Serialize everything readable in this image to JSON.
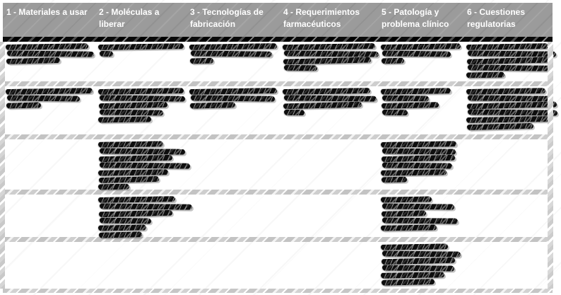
{
  "colors": {
    "header_bg": "#9b9b9b",
    "header_text": "#ffffff",
    "header_underline": "#0a0a0a",
    "row_separator": "#c8c8c8",
    "redaction": "#0e0e0e",
    "background": "#ffffff"
  },
  "table": {
    "columns": [
      {
        "label": "1 - Materiales a usar"
      },
      {
        "label": "2 - Moléculas a liberar"
      },
      {
        "label": "3 - Tecnologías de fabricación"
      },
      {
        "label": "4 - Requerimientos farmacéuticos"
      },
      {
        "label": "5 - Patología y problema clínico"
      },
      {
        "label": "6 - Cuestiones regulatorias"
      }
    ],
    "rows": [
      {
        "cells": {
          "redacted_line_widths_pct": [
            [
              95,
              100,
              62
            ],
            [
              100,
              16
            ],
            [
              100,
              93,
              27
            ],
            [
              100,
              102,
              95,
              36
            ],
            [
              100,
              86,
              28
            ],
            [
              98,
              106,
              100,
              100,
              46
            ]
          ]
        }
      },
      {
        "cells": {
          "redacted_line_widths_pct": [
            [
              100,
              84,
              40
            ],
            [
              100,
              100,
              80,
              74,
              62
            ],
            [
              100,
              96,
              52
            ],
            [
              95,
              100,
              85,
              22
            ],
            [
              88,
              58,
              72,
              32
            ],
            [
              95,
              100,
              108,
              108,
              100,
              80
            ]
          ]
        }
      },
      {
        "cells": {
          "redacted_line_widths_pct": [
            [],
            [
              76,
              100,
              86,
              106,
              82,
              70,
              36
            ],
            [],
            [],
            [
              95,
              92,
              92,
              88,
              82,
              32
            ],
            []
          ]
        }
      },
      {
        "cells": {
          "redacted_line_widths_pct": [
            [],
            [
              90,
              108,
              86,
              60,
              56,
              50
            ],
            [],
            [],
            [
              64,
              90,
              56,
              95,
              70
            ],
            []
          ]
        }
      },
      {
        "cells": {
          "redacted_line_widths_pct": [
            [],
            [],
            [],
            [],
            [
              84,
              98,
              92,
              90,
              80,
              66
            ],
            []
          ]
        }
      }
    ]
  }
}
